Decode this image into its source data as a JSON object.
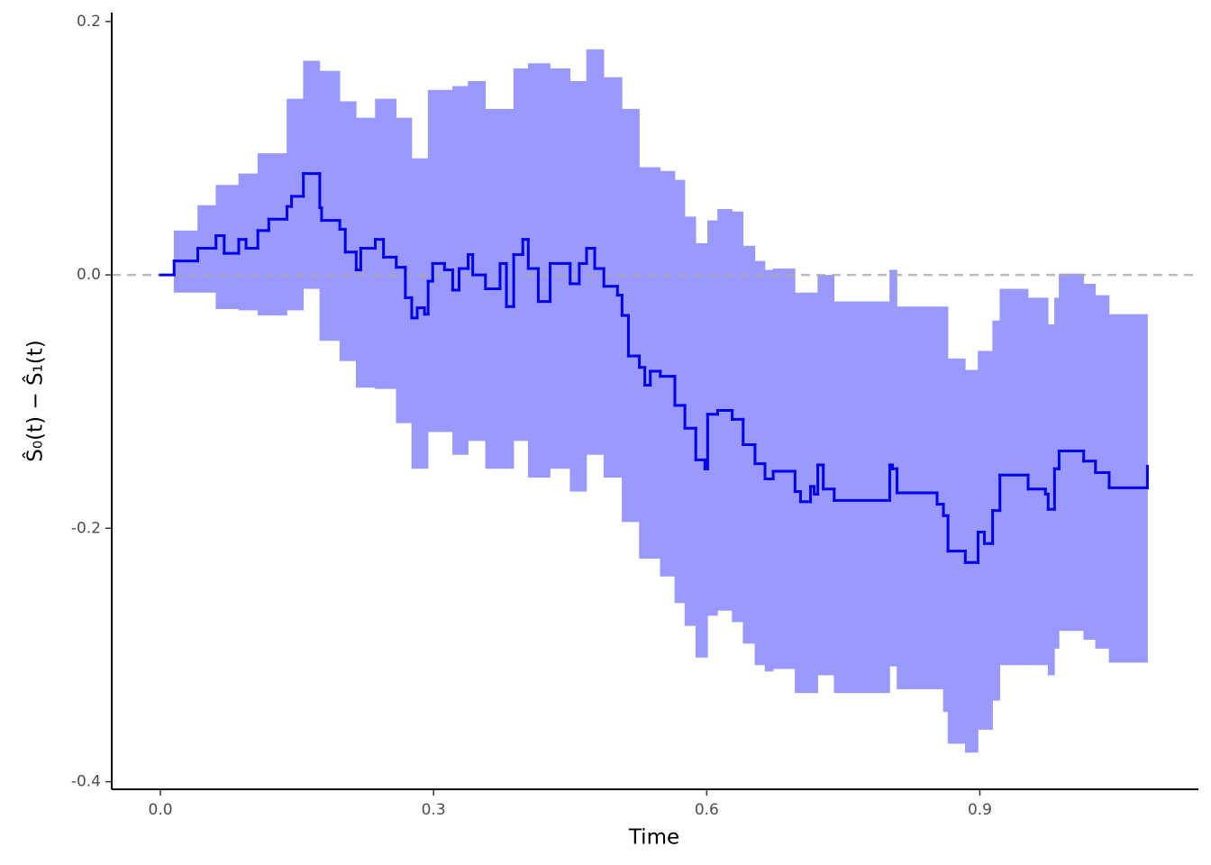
{
  "chart_data": {
    "type": "step",
    "xlabel": "Time",
    "ylabel": "Ŝ₀(t) − Ŝ₁(t)",
    "xlim": [
      -0.0535,
      1.14
    ],
    "ylim": [
      -0.406,
      0.207
    ],
    "xticks": [
      {
        "value": 0,
        "label": "0.0"
      },
      0.3,
      0.6,
      0.9
    ],
    "yticks": [
      -0.4,
      -0.2,
      {
        "value": 0,
        "label": "0.0"
      },
      0.2
    ],
    "hline": 0,
    "hline_color": "#aaaaaa",
    "series": [
      {
        "color": "#0000ee",
        "x": [
          0,
          0.015,
          0.041,
          0.061,
          0.07,
          0.086,
          0.094,
          0.107,
          0.119,
          0.139,
          0.144,
          0.157,
          0.175,
          0.177,
          0.197,
          0.203,
          0.215,
          0.22,
          0.236,
          0.245,
          0.259,
          0.269,
          0.276,
          0.282,
          0.29,
          0.294,
          0.299,
          0.312,
          0.321,
          0.328,
          0.338,
          0.343,
          0.357,
          0.373,
          0.38,
          0.388,
          0.398,
          0.404,
          0.415,
          0.428,
          0.45,
          0.46,
          0.468,
          0.477,
          0.487,
          0.502,
          0.507,
          0.514,
          0.526,
          0.532,
          0.538,
          0.549,
          0.565,
          0.576,
          0.588,
          0.598,
          0.601,
          0.612,
          0.628,
          0.64,
          0.653,
          0.664,
          0.673,
          0.697,
          0.703,
          0.714,
          0.718,
          0.722,
          0.728,
          0.74,
          0.801,
          0.804,
          0.809,
          0.853,
          0.86,
          0.865,
          0.884,
          0.898,
          0.905,
          0.914,
          0.922,
          0.953,
          0.972,
          0.975,
          0.982,
          0.987,
          1.014,
          1.027,
          1.042,
          1.084
        ],
        "values": [
          0,
          0.011,
          0.021,
          0.031,
          0.017,
          0.028,
          0.021,
          0.035,
          0.044,
          0.054,
          0.062,
          0.08,
          0.053,
          0.043,
          0.036,
          0.018,
          0.004,
          0.021,
          0.028,
          0.014,
          0.006,
          -0.018,
          -0.034,
          -0.026,
          -0.031,
          -0.005,
          0.009,
          0.004,
          -0.012,
          0.005,
          0.016,
          0,
          -0.011,
          0.009,
          -0.025,
          0.016,
          0.028,
          0.005,
          -0.021,
          0.009,
          -0.007,
          0.009,
          0.021,
          0.005,
          -0.009,
          -0.016,
          -0.032,
          -0.064,
          -0.073,
          -0.087,
          -0.076,
          -0.08,
          -0.103,
          -0.121,
          -0.146,
          -0.153,
          -0.11,
          -0.107,
          -0.114,
          -0.134,
          -0.149,
          -0.161,
          -0.155,
          -0.171,
          -0.179,
          -0.167,
          -0.173,
          -0.15,
          -0.169,
          -0.178,
          -0.15,
          -0.153,
          -0.172,
          -0.181,
          -0.19,
          -0.218,
          -0.227,
          -0.203,
          -0.212,
          -0.186,
          -0.158,
          -0.169,
          -0.173,
          -0.185,
          -0.153,
          -0.139,
          -0.147,
          -0.156,
          -0.168,
          -0.151
        ]
      }
    ],
    "band": {
      "color": "#9999ff",
      "x": [
        0.015,
        0.041,
        0.061,
        0.086,
        0.107,
        0.139,
        0.157,
        0.175,
        0.197,
        0.215,
        0.236,
        0.259,
        0.276,
        0.294,
        0.321,
        0.338,
        0.357,
        0.388,
        0.404,
        0.428,
        0.45,
        0.468,
        0.487,
        0.507,
        0.526,
        0.549,
        0.565,
        0.576,
        0.588,
        0.601,
        0.612,
        0.628,
        0.64,
        0.653,
        0.664,
        0.673,
        0.697,
        0.722,
        0.74,
        0.801,
        0.809,
        0.86,
        0.865,
        0.884,
        0.898,
        0.914,
        0.922,
        0.953,
        0.975,
        0.982,
        0.987,
        1.014,
        1.027,
        1.042,
        1.084
      ],
      "upper": [
        0.035,
        0.055,
        0.071,
        0.08,
        0.096,
        0.139,
        0.169,
        0.161,
        0.137,
        0.124,
        0.139,
        0.124,
        0.092,
        0.146,
        0.149,
        0.153,
        0.131,
        0.163,
        0.167,
        0.163,
        0.153,
        0.178,
        0.156,
        0.131,
        0.085,
        0.082,
        0.075,
        0.046,
        0.025,
        0.043,
        0.052,
        0.05,
        0.023,
        0.011,
        0.004,
        0.005,
        -0.014,
        0,
        -0.021,
        0.004,
        -0.025,
        -0.025,
        -0.066,
        -0.075,
        -0.06,
        -0.036,
        -0.011,
        -0.018,
        -0.039,
        -0.018,
        0.001,
        -0.007,
        -0.016,
        -0.031,
        -0.031
      ],
      "lower": [
        -0.014,
        -0.014,
        -0.027,
        -0.028,
        -0.032,
        -0.028,
        -0.011,
        -0.052,
        -0.068,
        -0.089,
        -0.09,
        -0.117,
        -0.153,
        -0.124,
        -0.142,
        -0.131,
        -0.153,
        -0.131,
        -0.16,
        -0.153,
        -0.171,
        -0.142,
        -0.16,
        -0.195,
        -0.224,
        -0.238,
        -0.259,
        -0.277,
        -0.302,
        -0.269,
        -0.265,
        -0.274,
        -0.291,
        -0.308,
        -0.313,
        -0.311,
        -0.33,
        -0.316,
        -0.33,
        -0.309,
        -0.327,
        -0.345,
        -0.37,
        -0.377,
        -0.359,
        -0.336,
        -0.308,
        -0.308,
        -0.316,
        -0.295,
        -0.281,
        -0.288,
        -0.295,
        -0.306,
        -0.306
      ]
    }
  }
}
